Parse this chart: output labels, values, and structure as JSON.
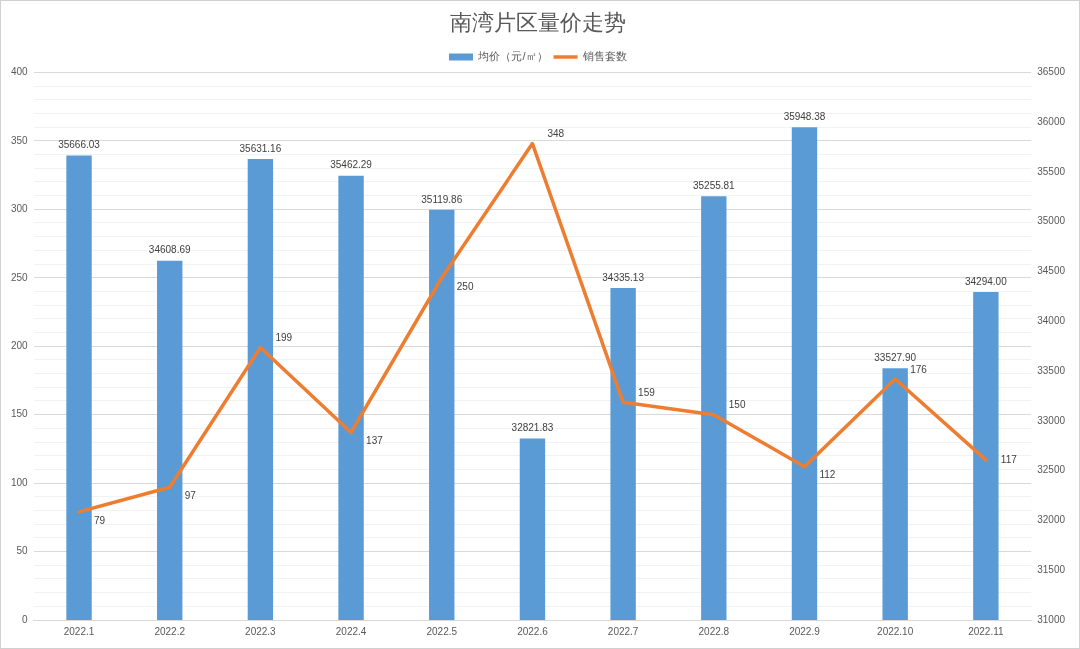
{
  "chart_data": {
    "type": "bar",
    "title": "南湾片区量价走势",
    "categories": [
      "2022.1",
      "2022.2",
      "2022.3",
      "2022.4",
      "2022.5",
      "2022.6",
      "2022.7",
      "2022.8",
      "2022.9",
      "2022.10",
      "2022.11"
    ],
    "series": [
      {
        "name": "均价（元/㎡）",
        "axis": "y2",
        "color": "#5b9bd5",
        "values": [
          35666.03,
          34608.69,
          35631.16,
          35462.29,
          35119.86,
          32821.83,
          34335.13,
          35255.81,
          35948.38,
          33527.9,
          34294
        ],
        "value_labels": [
          "35666.03",
          "34608.69",
          "35631.16",
          "35462.29",
          "35119.86",
          "32821.83",
          "34335.13",
          "35255.81",
          "35948.38",
          "33527.90",
          "34294.00"
        ]
      },
      {
        "name": "销售套数",
        "type": "line",
        "color": "#ed7d31",
        "values": [
          79,
          97,
          199,
          137,
          250,
          348,
          159,
          150,
          112,
          176,
          117
        ],
        "value_labels": [
          "79",
          "97",
          "199",
          "137",
          "250",
          "348",
          "159",
          "150",
          "112",
          "176",
          "117"
        ]
      }
    ],
    "ylim": [
      0,
      400
    ],
    "yticks": [
      0,
      {
        "value": 10,
        "label": null
      },
      {
        "value": 20,
        "label": null
      },
      {
        "value": 30,
        "label": null
      },
      {
        "value": 40,
        "label": null
      },
      50,
      {
        "value": 60,
        "label": null
      },
      {
        "value": 70,
        "label": null
      },
      {
        "value": 80,
        "label": null
      },
      {
        "value": 90,
        "label": null
      },
      100,
      {
        "value": 110,
        "label": null
      },
      {
        "value": 120,
        "label": null
      },
      {
        "value": 130,
        "label": null
      },
      {
        "value": 140,
        "label": null
      },
      150,
      {
        "value": 160,
        "label": null
      },
      {
        "value": 170,
        "label": null
      },
      {
        "value": 180,
        "label": null
      },
      {
        "value": 190,
        "label": null
      },
      200,
      {
        "value": 210,
        "label": null
      },
      {
        "value": 220,
        "label": null
      },
      {
        "value": 230,
        "label": null
      },
      {
        "value": 240,
        "label": null
      },
      250,
      {
        "value": 260,
        "label": null
      },
      {
        "value": 270,
        "label": null
      },
      {
        "value": 280,
        "label": null
      },
      {
        "value": 290,
        "label": null
      },
      300,
      {
        "value": 310,
        "label": null
      },
      {
        "value": 320,
        "label": null
      },
      {
        "value": 330,
        "label": null
      },
      {
        "value": 340,
        "label": null
      },
      350,
      {
        "value": 360,
        "label": null
      },
      {
        "value": 370,
        "label": null
      },
      {
        "value": 380,
        "label": null
      },
      {
        "value": 390,
        "label": null
      },
      400
    ],
    "y2lim": [
      31000,
      36500
    ],
    "y2ticks": [
      31000,
      31500,
      32000,
      32500,
      33000,
      33500,
      34000,
      34500,
      35000,
      35500,
      36000,
      36500
    ],
    "grid": "y",
    "legend": "top",
    "marker": "none"
  }
}
